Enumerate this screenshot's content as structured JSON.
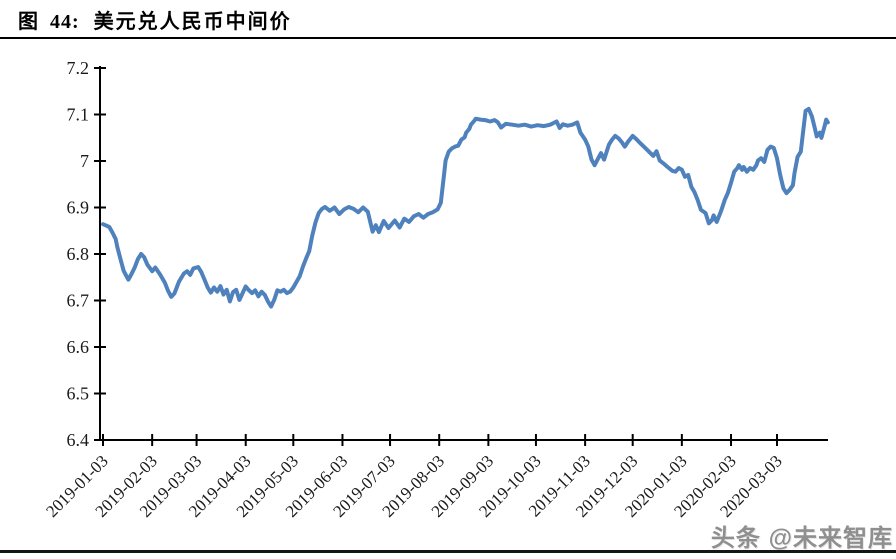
{
  "figure": {
    "label": "图",
    "number": "44:",
    "title": "美元兑人民币中间价"
  },
  "watermark": "头条 @未来智库",
  "chart_data": {
    "type": "line",
    "title": "美元兑人民币中间价",
    "series_name": "美元兑人民币中间价",
    "line_color": "#4f81bd",
    "axis_color": "#000000",
    "grid": false,
    "legend": "none",
    "ylim": [
      6.4,
      7.2
    ],
    "ytick_values": [
      6.4,
      6.5,
      6.6,
      6.7,
      6.8,
      6.9,
      7.0,
      7.1,
      7.2
    ],
    "ytick_labels": [
      "6.4",
      "6.5",
      "6.6",
      "6.7",
      "6.8",
      "6.9",
      "7",
      "7.1",
      "7.2"
    ],
    "x_tick_labels": [
      "2019-01-03",
      "2019-02-03",
      "2019-03-03",
      "2019-04-03",
      "2019-05-03",
      "2019-06-03",
      "2019-07-03",
      "2019-08-03",
      "2019-09-03",
      "2019-10-03",
      "2019-11-03",
      "2019-12-03",
      "2020-01-03",
      "2020-02-03",
      "2020-03-03"
    ],
    "x_tick_days": [
      0,
      31,
      59,
      90,
      120,
      151,
      181,
      212,
      243,
      273,
      304,
      334,
      365,
      396,
      425
    ],
    "x_unit": "days since 2019-01-03",
    "x_axis_max_day": 457,
    "points": [
      [
        0,
        6.864
      ],
      [
        2,
        6.861
      ],
      [
        4,
        6.858
      ],
      [
        6,
        6.846
      ],
      [
        8,
        6.832
      ],
      [
        9,
        6.815
      ],
      [
        11,
        6.79
      ],
      [
        13,
        6.764
      ],
      [
        15,
        6.751
      ],
      [
        16,
        6.745
      ],
      [
        18,
        6.757
      ],
      [
        20,
        6.771
      ],
      [
        22,
        6.789
      ],
      [
        24,
        6.8
      ],
      [
        26,
        6.793
      ],
      [
        28,
        6.777
      ],
      [
        31,
        6.763
      ],
      [
        33,
        6.771
      ],
      [
        36,
        6.756
      ],
      [
        39,
        6.738
      ],
      [
        41,
        6.721
      ],
      [
        43,
        6.708
      ],
      [
        45,
        6.715
      ],
      [
        48,
        6.741
      ],
      [
        51,
        6.758
      ],
      [
        53,
        6.763
      ],
      [
        55,
        6.755
      ],
      [
        57,
        6.769
      ],
      [
        60,
        6.772
      ],
      [
        62,
        6.761
      ],
      [
        64,
        6.745
      ],
      [
        66,
        6.728
      ],
      [
        68,
        6.717
      ],
      [
        70,
        6.728
      ],
      [
        72,
        6.719
      ],
      [
        74,
        6.731
      ],
      [
        76,
        6.713
      ],
      [
        78,
        6.723
      ],
      [
        80,
        6.698
      ],
      [
        82,
        6.718
      ],
      [
        84,
        6.723
      ],
      [
        86,
        6.701
      ],
      [
        88,
        6.716
      ],
      [
        90,
        6.73
      ],
      [
        92,
        6.722
      ],
      [
        94,
        6.716
      ],
      [
        96,
        6.722
      ],
      [
        98,
        6.709
      ],
      [
        100,
        6.719
      ],
      [
        102,
        6.712
      ],
      [
        104,
        6.698
      ],
      [
        106,
        6.687
      ],
      [
        108,
        6.702
      ],
      [
        110,
        6.722
      ],
      [
        112,
        6.719
      ],
      [
        114,
        6.723
      ],
      [
        116,
        6.716
      ],
      [
        118,
        6.719
      ],
      [
        120,
        6.728
      ],
      [
        122,
        6.74
      ],
      [
        124,
        6.752
      ],
      [
        126,
        6.772
      ],
      [
        128,
        6.79
      ],
      [
        130,
        6.806
      ],
      [
        132,
        6.84
      ],
      [
        134,
        6.868
      ],
      [
        136,
        6.888
      ],
      [
        138,
        6.897
      ],
      [
        140,
        6.901
      ],
      [
        143,
        6.893
      ],
      [
        146,
        6.9
      ],
      [
        149,
        6.886
      ],
      [
        152,
        6.896
      ],
      [
        155,
        6.901
      ],
      [
        158,
        6.897
      ],
      [
        161,
        6.89
      ],
      [
        164,
        6.9
      ],
      [
        167,
        6.891
      ],
      [
        170,
        6.848
      ],
      [
        172,
        6.862
      ],
      [
        174,
        6.847
      ],
      [
        177,
        6.871
      ],
      [
        180,
        6.856
      ],
      [
        184,
        6.872
      ],
      [
        187,
        6.857
      ],
      [
        190,
        6.876
      ],
      [
        193,
        6.869
      ],
      [
        196,
        6.881
      ],
      [
        199,
        6.886
      ],
      [
        202,
        6.878
      ],
      [
        205,
        6.886
      ],
      [
        208,
        6.89
      ],
      [
        211,
        6.896
      ],
      [
        213,
        6.91
      ],
      [
        214,
        6.94
      ],
      [
        215,
        6.97
      ],
      [
        216,
        7.001
      ],
      [
        218,
        7.02
      ],
      [
        220,
        7.027
      ],
      [
        222,
        7.031
      ],
      [
        224,
        7.033
      ],
      [
        226,
        7.046
      ],
      [
        228,
        7.051
      ],
      [
        229,
        7.061
      ],
      [
        231,
        7.069
      ],
      [
        232,
        7.078
      ],
      [
        234,
        7.086
      ],
      [
        235,
        7.091
      ],
      [
        238,
        7.089
      ],
      [
        241,
        7.088
      ],
      [
        244,
        7.085
      ],
      [
        247,
        7.088
      ],
      [
        249,
        7.083
      ],
      [
        251,
        7.072
      ],
      [
        254,
        7.08
      ],
      [
        258,
        7.078
      ],
      [
        262,
        7.076
      ],
      [
        266,
        7.078
      ],
      [
        270,
        7.074
      ],
      [
        274,
        7.077
      ],
      [
        278,
        7.075
      ],
      [
        282,
        7.078
      ],
      [
        286,
        7.085
      ],
      [
        288,
        7.071
      ],
      [
        290,
        7.079
      ],
      [
        293,
        7.076
      ],
      [
        296,
        7.078
      ],
      [
        299,
        7.083
      ],
      [
        301,
        7.061
      ],
      [
        304,
        7.046
      ],
      [
        306,
        7.031
      ],
      [
        308,
        7.003
      ],
      [
        310,
        6.991
      ],
      [
        312,
        7.004
      ],
      [
        314,
        7.017
      ],
      [
        316,
        7.003
      ],
      [
        319,
        7.035
      ],
      [
        321,
        7.046
      ],
      [
        323,
        7.054
      ],
      [
        325,
        7.049
      ],
      [
        327,
        7.041
      ],
      [
        329,
        7.031
      ],
      [
        331,
        7.041
      ],
      [
        334,
        7.054
      ],
      [
        336,
        7.048
      ],
      [
        338,
        7.041
      ],
      [
        341,
        7.031
      ],
      [
        344,
        7.021
      ],
      [
        347,
        7.011
      ],
      [
        349,
        7.021
      ],
      [
        351,
        7.001
      ],
      [
        353,
        6.996
      ],
      [
        356,
        6.987
      ],
      [
        359,
        6.979
      ],
      [
        361,
        6.977
      ],
      [
        363,
        6.985
      ],
      [
        365,
        6.981
      ],
      [
        367,
        6.966
      ],
      [
        369,
        6.97
      ],
      [
        371,
        6.944
      ],
      [
        373,
        6.933
      ],
      [
        375,
        6.916
      ],
      [
        377,
        6.895
      ],
      [
        380,
        6.888
      ],
      [
        382,
        6.866
      ],
      [
        384,
        6.873
      ],
      [
        385,
        6.883
      ],
      [
        387,
        6.869
      ],
      [
        389,
        6.886
      ],
      [
        390,
        6.895
      ],
      [
        392,
        6.916
      ],
      [
        394,
        6.931
      ],
      [
        396,
        6.953
      ],
      [
        398,
        6.977
      ],
      [
        400,
        6.985
      ],
      [
        401,
        6.991
      ],
      [
        403,
        6.981
      ],
      [
        404,
        6.987
      ],
      [
        406,
        6.977
      ],
      [
        408,
        6.985
      ],
      [
        410,
        6.981
      ],
      [
        412,
        6.991
      ],
      [
        413,
        7.001
      ],
      [
        415,
        7.006
      ],
      [
        417,
        6.998
      ],
      [
        419,
        7.024
      ],
      [
        421,
        7.031
      ],
      [
        423,
        7.028
      ],
      [
        425,
        7.006
      ],
      [
        427,
        6.97
      ],
      [
        429,
        6.941
      ],
      [
        431,
        6.931
      ],
      [
        433,
        6.938
      ],
      [
        435,
        6.948
      ],
      [
        436,
        6.974
      ],
      [
        438,
        7.009
      ],
      [
        440,
        7.02
      ],
      [
        441,
        7.05
      ],
      [
        443,
        7.108
      ],
      [
        445,
        7.112
      ],
      [
        447,
        7.096
      ],
      [
        449,
        7.068
      ],
      [
        450,
        7.053
      ],
      [
        452,
        7.061
      ],
      [
        453,
        7.05
      ],
      [
        455,
        7.075
      ],
      [
        456,
        7.089
      ],
      [
        457,
        7.083
      ]
    ]
  }
}
